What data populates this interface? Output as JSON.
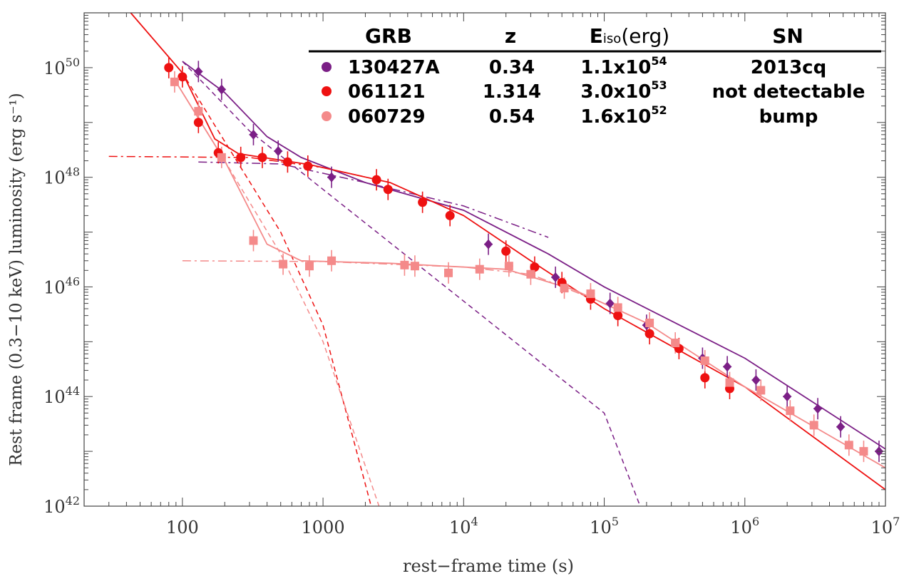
{
  "chart_data": {
    "type": "scatter",
    "title": "",
    "xlabel": "rest−frame time (s)",
    "ylabel": "Rest frame (0.3−10 keV) luminosity (erg s⁻¹)",
    "xscale": "log",
    "yscale": "log",
    "xlim": [
      20,
      10000000
    ],
    "ylim": [
      1e+42,
      1e+51
    ],
    "x_ticks": [
      {
        "value": 100,
        "base": "100",
        "exp": ""
      },
      {
        "value": 1000,
        "base": "1000",
        "exp": ""
      },
      {
        "value": 10000,
        "base": "10",
        "exp": "4"
      },
      {
        "value": 100000,
        "base": "10",
        "exp": "5"
      },
      {
        "value": 1000000,
        "base": "10",
        "exp": "6"
      },
      {
        "value": 10000000,
        "base": "10",
        "exp": "7"
      }
    ],
    "y_ticks": [
      {
        "value": 1e+42,
        "base": "10",
        "exp": "42"
      },
      {
        "value": 1e+44,
        "base": "10",
        "exp": "44"
      },
      {
        "value": 1e+46,
        "base": "10",
        "exp": "46"
      },
      {
        "value": 1e+48,
        "base": "10",
        "exp": "48"
      },
      {
        "value": 1e+50,
        "base": "10",
        "exp": "50"
      }
    ],
    "legend": {
      "placement": "top-right",
      "headers": [
        "GRB",
        "z",
        "E",
        "iso",
        "(erg)",
        "SN"
      ],
      "rows": [
        {
          "grb": "130427A",
          "z": "0.34",
          "eiso_base": "1.1x10",
          "eiso_exp": "54",
          "sn": "2013cq",
          "color": "#7B1F86"
        },
        {
          "grb": "061121",
          "z": "1.314",
          "eiso_base": "3.0x10",
          "eiso_exp": "53",
          "sn": "not detectable",
          "color": "#EE1111"
        },
        {
          "grb": "060729",
          "z": "0.54",
          "eiso_base": "1.6x10",
          "eiso_exp": "52",
          "sn": "bump",
          "color": "#F48A8A"
        }
      ]
    },
    "series": [
      {
        "name": "130427A",
        "color": "#7B1F86",
        "marker": "diamond",
        "points": [
          [
            130,
            8.5e+49
          ],
          [
            190,
            4e+49
          ],
          [
            320,
            6e+48
          ],
          [
            480,
            3e+48
          ],
          [
            1150,
            1e+48
          ],
          [
            15000,
            6e+46
          ],
          [
            45000,
            1.5e+46
          ],
          [
            110000,
            5e+45
          ],
          [
            200000,
            2e+45
          ],
          [
            500000,
            5e+44
          ],
          [
            750000,
            3.5e+44
          ],
          [
            1200000,
            2e+44
          ],
          [
            2000000,
            1e+44
          ],
          [
            3300000,
            6e+43
          ],
          [
            4800000,
            2.8e+43
          ],
          [
            9000000,
            1e+43
          ]
        ]
      },
      {
        "name": "061121",
        "color": "#EE1111",
        "marker": "circle",
        "points": [
          [
            80,
            1e+50
          ],
          [
            100,
            6.8e+49
          ],
          [
            130,
            1e+49
          ],
          [
            180,
            2.8e+48
          ],
          [
            260,
            2.3e+48
          ],
          [
            370,
            2.3e+48
          ],
          [
            560,
            1.9e+48
          ],
          [
            780,
            1.6e+48
          ],
          [
            2400,
            9e+47
          ],
          [
            2900,
            6e+47
          ],
          [
            5100,
            3.5e+47
          ],
          [
            8000,
            2e+47
          ],
          [
            20000,
            4.5e+46
          ],
          [
            32000,
            2.3e+46
          ],
          [
            50000,
            1.2e+46
          ],
          [
            80000,
            6e+45
          ],
          [
            125000,
            3e+45
          ],
          [
            210000,
            1.4e+45
          ],
          [
            340000,
            7.5e+44
          ],
          [
            520000,
            2.2e+44
          ],
          [
            780000,
            1.4e+44
          ]
        ]
      },
      {
        "name": "060729",
        "color": "#F48A8A",
        "marker": "square",
        "points": [
          [
            88,
            5.5e+49
          ],
          [
            130,
            1.6e+49
          ],
          [
            190,
            2.3e+48
          ],
          [
            320,
            7e+46
          ],
          [
            520,
            2.6e+46
          ],
          [
            800,
            2.4e+46
          ],
          [
            1150,
            3e+46
          ],
          [
            3800,
            2.5e+46
          ],
          [
            4500,
            2.4e+46
          ],
          [
            7800,
            1.8e+46
          ],
          [
            13000,
            2.1e+46
          ],
          [
            21000,
            2.4e+46
          ],
          [
            30000,
            1.7e+46
          ],
          [
            52000,
            9.5e+45
          ],
          [
            80000,
            7.5e+45
          ],
          [
            125000,
            4.2e+45
          ],
          [
            210000,
            2.2e+45
          ],
          [
            320000,
            9.5e+44
          ],
          [
            520000,
            4.5e+44
          ],
          [
            780000,
            1.8e+44
          ],
          [
            1300000,
            1.3e+44
          ],
          [
            2100000,
            5.5e+43
          ],
          [
            3100000,
            3e+43
          ],
          [
            5500000,
            1.3e+43
          ],
          [
            7000000,
            1e+43
          ]
        ]
      }
    ],
    "model_curves": [
      {
        "series": "130427A",
        "color": "#7B1F86",
        "prompt": {
          "style": "dashed",
          "points": [
            [
              100,
              1.3e+50
            ],
            [
              300,
              7e+48
            ],
            [
              1000,
              6e+47
            ],
            [
              10000,
              5.5e+45
            ],
            [
              100000,
              5e+43
            ],
            [
              180000,
              1e+42
            ]
          ]
        },
        "plateau": {
          "style": "dashdot",
          "points": [
            [
              130,
              1.9e+48
            ],
            [
              500,
              1.75e+48
            ],
            [
              2000,
              8e+47
            ],
            [
              10000,
              3e+47
            ],
            [
              40000,
              8e+46
            ]
          ]
        },
        "total": {
          "style": "solid",
          "points": [
            [
              100,
              1.3e+50
            ],
            [
              200,
              3.5e+49
            ],
            [
              400,
              5.5e+48
            ],
            [
              700,
              2.3e+48
            ],
            [
              2000,
              8e+47
            ],
            [
              10000,
              2.5e+47
            ],
            [
              40000,
              4e+46
            ],
            [
              100000,
              1e+46
            ],
            [
              1000000,
              5e+44
            ],
            [
              10000000,
              1.1e+43
            ]
          ]
        }
      },
      {
        "series": "061121",
        "color": "#EE1111",
        "prompt": {
          "style": "dashed",
          "points": [
            [
              25,
              5e+51
            ],
            [
              100,
              8e+49
            ],
            [
              500,
              1e+47
            ],
            [
              1000,
              2e+45
            ],
            [
              2200,
              1e+42
            ]
          ]
        },
        "plateau": {
          "style": "dashdot",
          "points": [
            [
              30,
              2.4e+48
            ],
            [
              300,
              2.3e+48
            ],
            [
              1000,
              1.5e+48
            ],
            [
              3000,
              8e+47
            ],
            [
              10000,
              2e+47
            ]
          ]
        },
        "total": {
          "style": "solid",
          "points": [
            [
              25,
              5e+51
            ],
            [
              100,
              8e+49
            ],
            [
              170,
              5e+48
            ],
            [
              250,
              2.7e+48
            ],
            [
              800,
              1.7e+48
            ],
            [
              3000,
              8e+47
            ],
            [
              10000,
              2e+47
            ],
            [
              30000,
              3e+46
            ],
            [
              100000,
              4e+45
            ],
            [
              1000000,
              1.5e+44
            ],
            [
              10000000,
              2e+42
            ]
          ]
        }
      },
      {
        "series": "060729",
        "color": "#F48A8A",
        "prompt": {
          "style": "dashed",
          "points": [
            [
              88,
              6e+49
            ],
            [
              200,
              2e+48
            ],
            [
              500,
              4e+46
            ],
            [
              1000,
              1e+45
            ],
            [
              2500,
              1e+42
            ]
          ]
        },
        "plateau": {
          "style": "dashdot",
          "points": [
            [
              100,
              3e+46
            ],
            [
              1000,
              2.9e+46
            ],
            [
              10000,
              2.3e+46
            ],
            [
              30000,
              1.7e+46
            ],
            [
              100000,
              5e+45
            ]
          ]
        },
        "total": {
          "style": "solid",
          "points": [
            [
              88,
              6e+49
            ],
            [
              200,
              2e+48
            ],
            [
              400,
              6e+46
            ],
            [
              700,
              3e+46
            ],
            [
              3000,
              2.7e+46
            ],
            [
              20000,
              2.1e+46
            ],
            [
              60000,
              9e+45
            ],
            [
              200000,
              2.2e+45
            ],
            [
              1000000,
              1.5e+44
            ],
            [
              10000000,
              5e+42
            ]
          ]
        }
      }
    ]
  }
}
